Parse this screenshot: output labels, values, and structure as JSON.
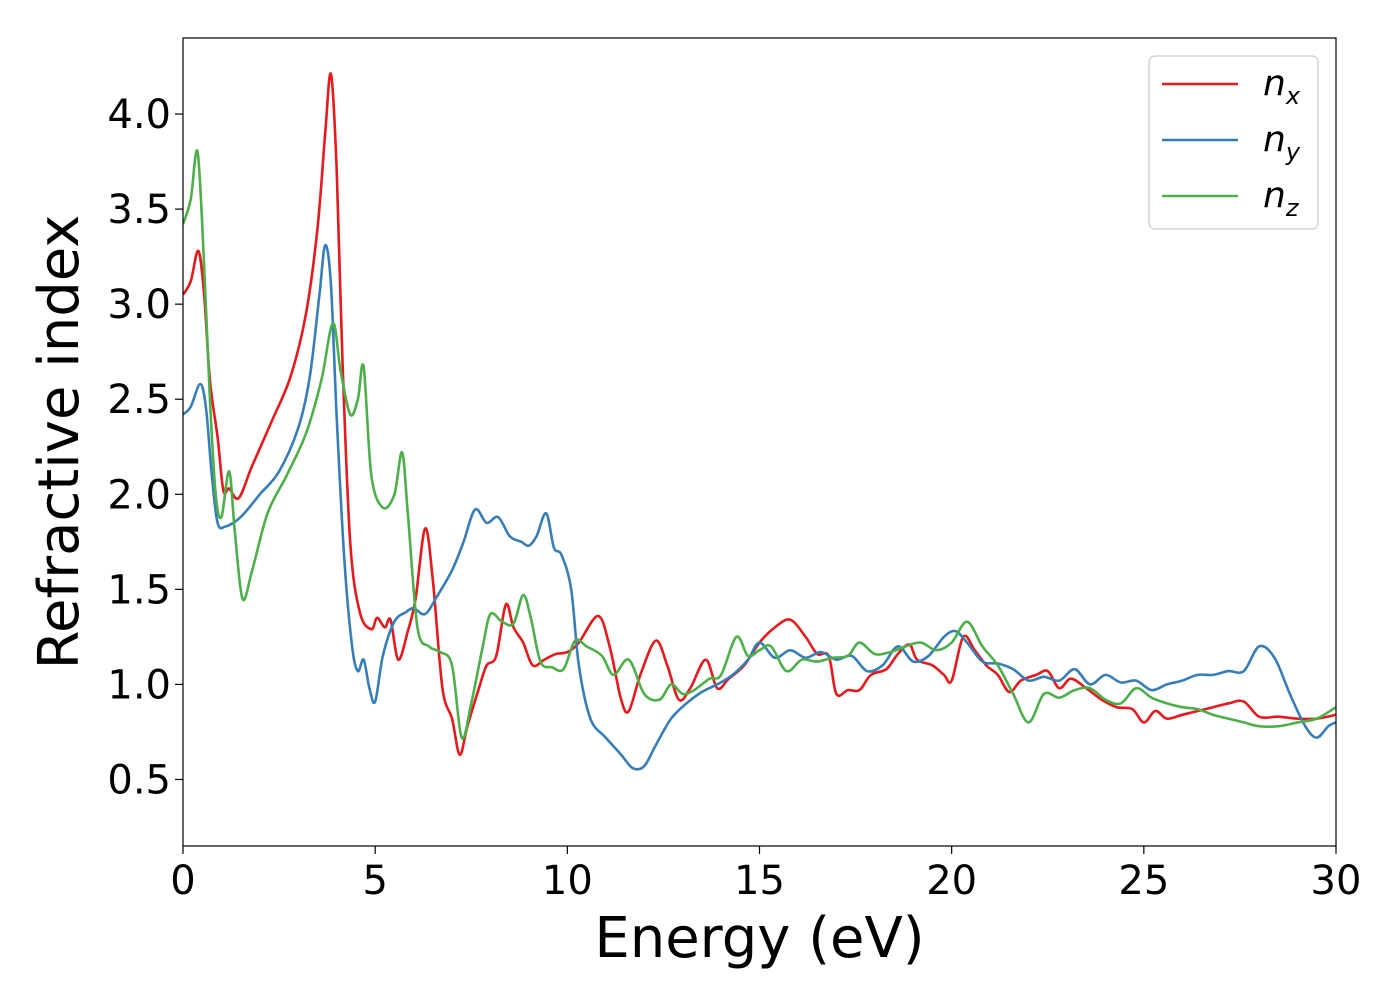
{
  "chart_data": {
    "type": "line",
    "xlabel": "Energy (eV)",
    "ylabel": "Refractive index",
    "xlim": [
      0,
      30
    ],
    "ylim": [
      0.15,
      4.4
    ],
    "xticks": [
      0,
      5,
      10,
      15,
      20,
      25,
      30
    ],
    "xtick_labels": [
      "0",
      "5",
      "10",
      "15",
      "20",
      "25",
      "30"
    ],
    "yticks": [
      0.5,
      1.0,
      1.5,
      2.0,
      2.5,
      3.0,
      3.5,
      4.0
    ],
    "ytick_labels": [
      "0.5",
      "1.0",
      "1.5",
      "2.0",
      "2.5",
      "3.0",
      "3.5",
      "4.0"
    ],
    "grid": false,
    "legend_position": "top-right",
    "series": [
      {
        "name": "n",
        "subscript": "x",
        "color": "#e41a1c",
        "points": [
          [
            0,
            3.05
          ],
          [
            0.2,
            3.12
          ],
          [
            0.4,
            3.28
          ],
          [
            0.55,
            3.05
          ],
          [
            0.7,
            2.6
          ],
          [
            0.9,
            2.3
          ],
          [
            1.05,
            2.02
          ],
          [
            1.2,
            2.03
          ],
          [
            1.45,
            1.98
          ],
          [
            1.8,
            2.15
          ],
          [
            2.3,
            2.38
          ],
          [
            2.8,
            2.62
          ],
          [
            3.2,
            2.95
          ],
          [
            3.5,
            3.4
          ],
          [
            3.7,
            3.9
          ],
          [
            3.85,
            4.21
          ],
          [
            4.0,
            3.7
          ],
          [
            4.15,
            2.7
          ],
          [
            4.35,
            1.75
          ],
          [
            4.6,
            1.38
          ],
          [
            4.9,
            1.29
          ],
          [
            5.05,
            1.35
          ],
          [
            5.25,
            1.3
          ],
          [
            5.4,
            1.34
          ],
          [
            5.6,
            1.13
          ],
          [
            5.85,
            1.28
          ],
          [
            6.05,
            1.45
          ],
          [
            6.3,
            1.82
          ],
          [
            6.5,
            1.55
          ],
          [
            6.75,
            0.98
          ],
          [
            7.0,
            0.82
          ],
          [
            7.2,
            0.63
          ],
          [
            7.4,
            0.78
          ],
          [
            7.7,
            0.98
          ],
          [
            7.9,
            1.1
          ],
          [
            8.15,
            1.15
          ],
          [
            8.4,
            1.42
          ],
          [
            8.6,
            1.3
          ],
          [
            8.85,
            1.22
          ],
          [
            9.1,
            1.1
          ],
          [
            9.4,
            1.13
          ],
          [
            9.7,
            1.16
          ],
          [
            10.0,
            1.17
          ],
          [
            10.3,
            1.22
          ],
          [
            10.8,
            1.36
          ],
          [
            11.1,
            1.2
          ],
          [
            11.4,
            0.92
          ],
          [
            11.6,
            0.86
          ],
          [
            11.9,
            1.05
          ],
          [
            12.3,
            1.23
          ],
          [
            12.6,
            1.1
          ],
          [
            12.9,
            0.92
          ],
          [
            13.2,
            0.98
          ],
          [
            13.6,
            1.13
          ],
          [
            13.9,
            0.98
          ],
          [
            14.2,
            1.03
          ],
          [
            14.6,
            1.1
          ],
          [
            15.0,
            1.22
          ],
          [
            15.4,
            1.3
          ],
          [
            15.8,
            1.34
          ],
          [
            16.2,
            1.25
          ],
          [
            16.5,
            1.16
          ],
          [
            16.8,
            1.15
          ],
          [
            17.0,
            0.95
          ],
          [
            17.3,
            0.97
          ],
          [
            17.6,
            0.97
          ],
          [
            17.9,
            1.05
          ],
          [
            18.3,
            1.08
          ],
          [
            18.6,
            1.16
          ],
          [
            18.9,
            1.21
          ],
          [
            19.1,
            1.13
          ],
          [
            19.5,
            1.1
          ],
          [
            19.8,
            1.05
          ],
          [
            20.0,
            1.02
          ],
          [
            20.3,
            1.25
          ],
          [
            20.6,
            1.18
          ],
          [
            20.9,
            1.1
          ],
          [
            21.2,
            1.05
          ],
          [
            21.5,
            0.96
          ],
          [
            21.8,
            1.02
          ],
          [
            22.2,
            1.05
          ],
          [
            22.5,
            1.07
          ],
          [
            22.8,
            0.98
          ],
          [
            23.1,
            1.03
          ],
          [
            23.5,
            0.98
          ],
          [
            23.9,
            0.92
          ],
          [
            24.3,
            0.88
          ],
          [
            24.7,
            0.87
          ],
          [
            25.0,
            0.8
          ],
          [
            25.3,
            0.86
          ],
          [
            25.6,
            0.82
          ],
          [
            26.0,
            0.84
          ],
          [
            26.4,
            0.86
          ],
          [
            26.8,
            0.88
          ],
          [
            27.2,
            0.9
          ],
          [
            27.6,
            0.91
          ],
          [
            28.0,
            0.83
          ],
          [
            28.5,
            0.83
          ],
          [
            29.0,
            0.82
          ],
          [
            29.5,
            0.82
          ],
          [
            30.0,
            0.84
          ]
        ]
      },
      {
        "name": "n",
        "subscript": "y",
        "color": "#377eb8",
        "points": [
          [
            0,
            2.42
          ],
          [
            0.2,
            2.46
          ],
          [
            0.45,
            2.58
          ],
          [
            0.6,
            2.45
          ],
          [
            0.75,
            2.1
          ],
          [
            0.9,
            1.85
          ],
          [
            1.1,
            1.83
          ],
          [
            1.5,
            1.88
          ],
          [
            2.0,
            2.0
          ],
          [
            2.5,
            2.12
          ],
          [
            3.0,
            2.35
          ],
          [
            3.3,
            2.62
          ],
          [
            3.55,
            3.05
          ],
          [
            3.7,
            3.31
          ],
          [
            3.85,
            3.1
          ],
          [
            4.0,
            2.4
          ],
          [
            4.2,
            1.65
          ],
          [
            4.4,
            1.2
          ],
          [
            4.55,
            1.07
          ],
          [
            4.7,
            1.13
          ],
          [
            4.85,
            0.98
          ],
          [
            5.0,
            0.91
          ],
          [
            5.2,
            1.15
          ],
          [
            5.5,
            1.33
          ],
          [
            5.8,
            1.38
          ],
          [
            6.0,
            1.4
          ],
          [
            6.3,
            1.37
          ],
          [
            6.6,
            1.46
          ],
          [
            7.0,
            1.6
          ],
          [
            7.3,
            1.75
          ],
          [
            7.6,
            1.92
          ],
          [
            7.9,
            1.85
          ],
          [
            8.2,
            1.88
          ],
          [
            8.5,
            1.78
          ],
          [
            8.8,
            1.75
          ],
          [
            9.0,
            1.73
          ],
          [
            9.2,
            1.78
          ],
          [
            9.45,
            1.9
          ],
          [
            9.65,
            1.72
          ],
          [
            9.85,
            1.68
          ],
          [
            10.1,
            1.5
          ],
          [
            10.3,
            1.1
          ],
          [
            10.6,
            0.82
          ],
          [
            11.0,
            0.72
          ],
          [
            11.4,
            0.63
          ],
          [
            11.7,
            0.56
          ],
          [
            12.0,
            0.57
          ],
          [
            12.3,
            0.68
          ],
          [
            12.7,
            0.82
          ],
          [
            13.1,
            0.9
          ],
          [
            13.5,
            0.96
          ],
          [
            13.9,
            1.0
          ],
          [
            14.3,
            1.05
          ],
          [
            14.7,
            1.13
          ],
          [
            15.0,
            1.22
          ],
          [
            15.4,
            1.14
          ],
          [
            15.8,
            1.18
          ],
          [
            16.2,
            1.14
          ],
          [
            16.6,
            1.17
          ],
          [
            17.0,
            1.13
          ],
          [
            17.4,
            1.15
          ],
          [
            17.8,
            1.07
          ],
          [
            18.2,
            1.1
          ],
          [
            18.6,
            1.2
          ],
          [
            19.0,
            1.12
          ],
          [
            19.4,
            1.15
          ],
          [
            19.8,
            1.25
          ],
          [
            20.1,
            1.28
          ],
          [
            20.4,
            1.22
          ],
          [
            20.8,
            1.12
          ],
          [
            21.2,
            1.11
          ],
          [
            21.6,
            1.08
          ],
          [
            22.0,
            1.02
          ],
          [
            22.4,
            1.04
          ],
          [
            22.8,
            1.02
          ],
          [
            23.2,
            1.08
          ],
          [
            23.6,
            1.0
          ],
          [
            24.0,
            1.05
          ],
          [
            24.4,
            1.01
          ],
          [
            24.8,
            1.02
          ],
          [
            25.2,
            0.97
          ],
          [
            25.6,
            1.0
          ],
          [
            26.0,
            1.02
          ],
          [
            26.4,
            1.05
          ],
          [
            26.8,
            1.05
          ],
          [
            27.2,
            1.07
          ],
          [
            27.6,
            1.07
          ],
          [
            28.0,
            1.2
          ],
          [
            28.4,
            1.14
          ],
          [
            28.8,
            0.95
          ],
          [
            29.2,
            0.78
          ],
          [
            29.5,
            0.72
          ],
          [
            29.8,
            0.78
          ],
          [
            30.0,
            0.8
          ]
        ]
      },
      {
        "name": "n",
        "subscript": "z",
        "color": "#4daf4a",
        "points": [
          [
            0,
            3.42
          ],
          [
            0.2,
            3.55
          ],
          [
            0.38,
            3.8
          ],
          [
            0.55,
            3.2
          ],
          [
            0.7,
            2.5
          ],
          [
            0.85,
            2.0
          ],
          [
            1.0,
            1.88
          ],
          [
            1.2,
            2.12
          ],
          [
            1.35,
            1.8
          ],
          [
            1.55,
            1.45
          ],
          [
            1.8,
            1.6
          ],
          [
            2.2,
            1.9
          ],
          [
            2.7,
            2.1
          ],
          [
            3.2,
            2.32
          ],
          [
            3.6,
            2.6
          ],
          [
            3.9,
            2.9
          ],
          [
            4.1,
            2.65
          ],
          [
            4.35,
            2.42
          ],
          [
            4.55,
            2.5
          ],
          [
            4.7,
            2.67
          ],
          [
            4.9,
            2.1
          ],
          [
            5.2,
            1.93
          ],
          [
            5.5,
            2.0
          ],
          [
            5.7,
            2.22
          ],
          [
            5.85,
            1.9
          ],
          [
            6.1,
            1.3
          ],
          [
            6.4,
            1.2
          ],
          [
            6.7,
            1.17
          ],
          [
            7.0,
            1.1
          ],
          [
            7.25,
            0.72
          ],
          [
            7.5,
            0.9
          ],
          [
            7.8,
            1.2
          ],
          [
            8.0,
            1.37
          ],
          [
            8.3,
            1.33
          ],
          [
            8.6,
            1.32
          ],
          [
            8.85,
            1.47
          ],
          [
            9.05,
            1.35
          ],
          [
            9.3,
            1.12
          ],
          [
            9.6,
            1.09
          ],
          [
            9.9,
            1.08
          ],
          [
            10.2,
            1.23
          ],
          [
            10.5,
            1.2
          ],
          [
            10.9,
            1.15
          ],
          [
            11.2,
            1.05
          ],
          [
            11.6,
            1.13
          ],
          [
            12.0,
            0.95
          ],
          [
            12.4,
            0.92
          ],
          [
            12.7,
            1.0
          ],
          [
            13.0,
            0.95
          ],
          [
            13.3,
            0.97
          ],
          [
            13.7,
            1.03
          ],
          [
            14.0,
            1.05
          ],
          [
            14.4,
            1.25
          ],
          [
            14.7,
            1.15
          ],
          [
            15.0,
            1.18
          ],
          [
            15.3,
            1.2
          ],
          [
            15.7,
            1.07
          ],
          [
            16.1,
            1.13
          ],
          [
            16.5,
            1.12
          ],
          [
            16.9,
            1.14
          ],
          [
            17.3,
            1.15
          ],
          [
            17.6,
            1.22
          ],
          [
            18.0,
            1.16
          ],
          [
            18.4,
            1.17
          ],
          [
            18.8,
            1.2
          ],
          [
            19.2,
            1.22
          ],
          [
            19.6,
            1.18
          ],
          [
            20.0,
            1.22
          ],
          [
            20.4,
            1.33
          ],
          [
            20.8,
            1.2
          ],
          [
            21.2,
            1.1
          ],
          [
            21.6,
            0.95
          ],
          [
            22.0,
            0.8
          ],
          [
            22.4,
            0.95
          ],
          [
            22.8,
            0.93
          ],
          [
            23.2,
            0.97
          ],
          [
            23.6,
            0.98
          ],
          [
            24.0,
            0.92
          ],
          [
            24.4,
            0.9
          ],
          [
            24.8,
            0.98
          ],
          [
            25.2,
            0.93
          ],
          [
            25.6,
            0.9
          ],
          [
            26.0,
            0.88
          ],
          [
            26.4,
            0.87
          ],
          [
            26.8,
            0.84
          ],
          [
            27.2,
            0.82
          ],
          [
            27.6,
            0.8
          ],
          [
            28.0,
            0.78
          ],
          [
            28.5,
            0.78
          ],
          [
            29.0,
            0.8
          ],
          [
            29.5,
            0.82
          ],
          [
            30.0,
            0.88
          ]
        ]
      }
    ]
  }
}
